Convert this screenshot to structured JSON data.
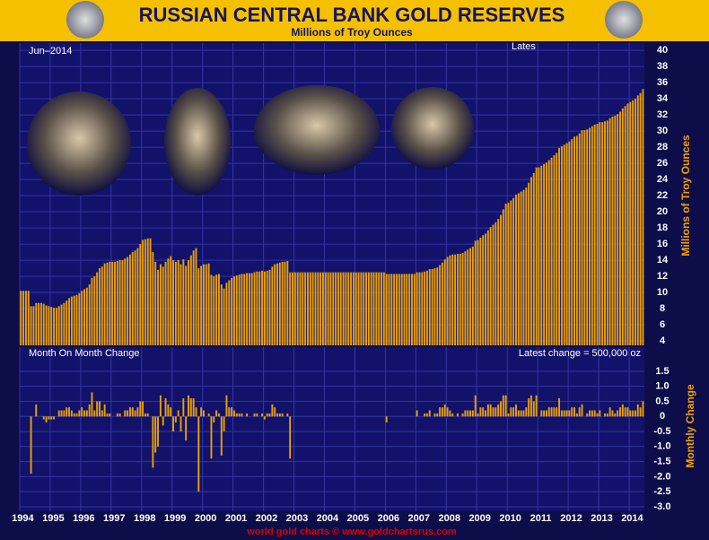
{
  "header": {
    "title": "RUSSIAN CENTRAL BANK GOLD RESERVES",
    "subtitle": "Millions of Troy Ounces"
  },
  "footer": "world gold charts © www.goldchartsrus.com",
  "chart_data": [
    {
      "type": "bar",
      "y_label": "Millions of Troy Ounces",
      "date_label": "Jun–2014",
      "latest_label": "Lates",
      "color": "#e8a000",
      "grid": true,
      "categories": [
        "1994",
        null,
        null,
        null,
        null,
        null,
        null,
        null,
        null,
        null,
        null,
        null,
        "1995",
        null,
        null,
        null,
        null,
        null,
        null,
        null,
        null,
        null,
        null,
        null,
        "1996",
        null,
        null,
        null,
        null,
        null,
        null,
        null,
        null,
        null,
        null,
        null,
        "1997",
        null,
        null,
        null,
        null,
        null,
        null,
        null,
        null,
        null,
        null,
        null,
        "1998",
        null,
        null,
        null,
        null,
        null,
        null,
        null,
        null,
        null,
        null,
        null,
        "1999",
        null,
        null,
        null,
        null,
        null,
        null,
        null,
        null,
        null,
        null,
        null,
        "2000",
        null,
        null,
        null,
        null,
        null,
        null,
        null,
        null,
        null,
        null,
        null,
        "2001",
        null,
        null,
        null,
        null,
        null,
        null,
        null,
        null,
        null,
        null,
        null,
        "2002",
        null,
        null,
        null,
        null,
        null,
        null,
        null,
        null,
        null,
        null,
        null,
        "2003",
        null,
        null,
        null,
        null,
        null,
        null,
        null,
        null,
        null,
        null,
        null,
        "2004",
        null,
        null,
        null,
        null,
        null,
        null,
        null,
        null,
        null,
        null,
        null,
        "2005",
        null,
        null,
        null,
        null,
        null,
        null,
        null,
        null,
        null,
        null,
        null,
        "2006",
        null,
        null,
        null,
        null,
        null,
        null,
        null,
        null,
        null,
        null,
        null,
        "2007",
        null,
        null,
        null,
        null,
        null,
        null,
        null,
        null,
        null,
        null,
        null,
        "2008",
        null,
        null,
        null,
        null,
        null,
        null,
        null,
        null,
        null,
        null,
        null,
        "2009",
        null,
        null,
        null,
        null,
        null,
        null,
        null,
        null,
        null,
        null,
        null,
        "2010",
        null,
        null,
        null,
        null,
        null,
        null,
        null,
        null,
        null,
        null,
        null,
        "2011",
        null,
        null,
        null,
        null,
        null,
        null,
        null,
        null,
        null,
        null,
        null,
        "2012",
        null,
        null,
        null,
        null,
        null,
        null,
        null,
        null,
        null,
        null,
        null,
        "2013",
        null,
        null,
        null,
        null,
        null,
        null,
        null,
        null,
        null,
        null,
        null,
        "2014",
        null,
        null,
        null,
        null,
        null
      ],
      "values": [
        10.2,
        10.2,
        10.2,
        10.2,
        8.3,
        8.3,
        8.7,
        8.7,
        8.7,
        8.6,
        8.4,
        8.3,
        8.2,
        8.1,
        8.1,
        8.3,
        8.5,
        8.7,
        9.0,
        9.3,
        9.5,
        9.6,
        9.7,
        9.9,
        10.2,
        10.4,
        10.6,
        11.0,
        11.8,
        12.0,
        12.5,
        13.0,
        13.2,
        13.6,
        13.7,
        13.8,
        13.8,
        13.8,
        13.9,
        14.0,
        14.0,
        14.2,
        14.4,
        14.7,
        15.0,
        15.2,
        15.5,
        16.0,
        16.5,
        16.6,
        16.7,
        16.7,
        15.0,
        13.8,
        12.8,
        13.5,
        13.2,
        13.8,
        14.2,
        14.5,
        14.0,
        13.8,
        14.0,
        13.5,
        14.1,
        13.3,
        14.0,
        14.6,
        15.2,
        15.5,
        13.0,
        13.3,
        13.5,
        13.5,
        13.6,
        12.2,
        12.0,
        12.2,
        12.3,
        11.0,
        10.5,
        11.2,
        11.5,
        11.8,
        12.0,
        12.1,
        12.2,
        12.3,
        12.3,
        12.4,
        12.4,
        12.4,
        12.5,
        12.6,
        12.6,
        12.7,
        12.6,
        12.7,
        12.8,
        13.2,
        13.5,
        13.6,
        13.7,
        13.8,
        13.8,
        13.9,
        12.5,
        12.5,
        12.5,
        12.5,
        12.5,
        12.5,
        12.5,
        12.5,
        12.5,
        12.5,
        12.5,
        12.5,
        12.5,
        12.5,
        12.5,
        12.5,
        12.5,
        12.5,
        12.5,
        12.5,
        12.5,
        12.5,
        12.5,
        12.5,
        12.5,
        12.5,
        12.5,
        12.5,
        12.5,
        12.5,
        12.5,
        12.5,
        12.5,
        12.5,
        12.5,
        12.5,
        12.5,
        12.5,
        12.3,
        12.3,
        12.3,
        12.3,
        12.3,
        12.3,
        12.3,
        12.3,
        12.3,
        12.3,
        12.3,
        12.3,
        12.5,
        12.5,
        12.5,
        12.6,
        12.7,
        12.9,
        12.9,
        13.0,
        13.1,
        13.4,
        13.7,
        14.1,
        14.4,
        14.6,
        14.7,
        14.7,
        14.8,
        14.8,
        14.9,
        15.1,
        15.3,
        15.5,
        15.7,
        16.4,
        16.5,
        16.8,
        17.1,
        17.3,
        17.7,
        18.1,
        18.4,
        18.7,
        19.1,
        19.6,
        20.3,
        21.0,
        21.1,
        21.4,
        21.7,
        22.1,
        22.3,
        22.5,
        22.7,
        23.0,
        23.6,
        24.3,
        24.8,
        25.5,
        25.5,
        25.7,
        25.9,
        26.1,
        26.4,
        26.7,
        27.0,
        27.3,
        27.9,
        28.1,
        28.3,
        28.5,
        28.7,
        29.0,
        29.3,
        29.4,
        29.7,
        30.1,
        30.1,
        30.2,
        30.4,
        30.6,
        30.8,
        30.9,
        31.1,
        31.1,
        31.2,
        31.3,
        31.6,
        31.8,
        31.9,
        32.1,
        32.4,
        32.8,
        33.1,
        33.4,
        33.6,
        33.8,
        34.0,
        34.4,
        34.7,
        35.2
      ],
      "ylim": [
        3.45,
        40.9
      ],
      "yticks": [
        4,
        6,
        8,
        10,
        12,
        14,
        16,
        18,
        20,
        22,
        24,
        26,
        28,
        30,
        32,
        34,
        36,
        38,
        40
      ]
    },
    {
      "type": "bar",
      "title": "Month On Month Change",
      "y_label": "Monthly Change",
      "latest_label": "Latest change = 500,000 oz",
      "color": "#e8a000",
      "grid": true,
      "values": [
        0,
        0,
        0,
        0,
        -1.9,
        0,
        0.4,
        0,
        0,
        -0.1,
        -0.2,
        -0.1,
        -0.1,
        -0.1,
        0,
        0.2,
        0.2,
        0.2,
        0.3,
        0.3,
        0.2,
        0.1,
        0.1,
        0.2,
        0.3,
        0.2,
        0.2,
        0.4,
        0.8,
        0.2,
        0.5,
        0.5,
        0.2,
        0.4,
        0.1,
        0.1,
        0,
        0,
        0.1,
        0.1,
        0,
        0.2,
        0.2,
        0.3,
        0.3,
        0.2,
        0.3,
        0.5,
        0.5,
        0.1,
        0.1,
        0,
        -1.7,
        -1.2,
        -1.0,
        0.7,
        -0.3,
        0.6,
        0.4,
        0.3,
        -0.5,
        -0.2,
        0.2,
        -0.5,
        0.6,
        -0.8,
        0.7,
        0.6,
        0.6,
        0.3,
        -2.5,
        0.3,
        0.2,
        0,
        0.1,
        -1.4,
        -0.2,
        0.2,
        0.1,
        -1.3,
        -0.5,
        0.7,
        0.3,
        0.3,
        0.2,
        0.1,
        0.1,
        0.1,
        0,
        0.1,
        0,
        0,
        0.1,
        0.1,
        0,
        0.1,
        -0.1,
        0.1,
        0.1,
        0.4,
        0.3,
        0.1,
        0.1,
        0.1,
        0,
        0.1,
        -1.4,
        0,
        0,
        0,
        0,
        0,
        0,
        0,
        0,
        0,
        0,
        0,
        0,
        0,
        0,
        0,
        0,
        0,
        0,
        0,
        0,
        0,
        0,
        0,
        0,
        0,
        0,
        0,
        0,
        0,
        0,
        0,
        0,
        0,
        0,
        0,
        0,
        0,
        -0.2,
        0,
        0,
        0,
        0,
        0,
        0,
        0,
        0,
        0,
        0,
        0,
        0.2,
        0,
        0,
        0.1,
        0.1,
        0.2,
        0,
        0.1,
        0.1,
        0.3,
        0.3,
        0.4,
        0.3,
        0.2,
        0.1,
        0,
        0.1,
        0,
        0.1,
        0.2,
        0.2,
        0.2,
        0.2,
        0.7,
        0.1,
        0.3,
        0.3,
        0.2,
        0.4,
        0.4,
        0.3,
        0.3,
        0.4,
        0.5,
        0.7,
        0.7,
        0.1,
        0.3,
        0.3,
        0.4,
        0.2,
        0.2,
        0.2,
        0.3,
        0.6,
        0.7,
        0.5,
        0.7,
        0,
        0.2,
        0.2,
        0.2,
        0.3,
        0.3,
        0.3,
        0.3,
        0.6,
        0.2,
        0.2,
        0.2,
        0.2,
        0.3,
        0.3,
        0.1,
        0.3,
        0.4,
        0,
        0.1,
        0.2,
        0.2,
        0.2,
        0.1,
        0.2,
        0,
        0.1,
        0.1,
        0.3,
        0.2,
        0.1,
        0.2,
        0.3,
        0.4,
        0.3,
        0.3,
        0.2,
        0.2,
        0.2,
        0.4,
        0.3,
        0.5
      ],
      "ylim": [
        -3.15,
        2.3
      ],
      "yticks": [
        1.5,
        {
          "value": 1,
          "label": "1.0"
        },
        0.5,
        0,
        -0.5,
        {
          "value": -1,
          "label": "-1.0"
        },
        -1.5,
        {
          "value": -2,
          "label": "-2.0"
        },
        -2.5,
        {
          "value": -3,
          "label": "-3.0"
        }
      ]
    }
  ]
}
